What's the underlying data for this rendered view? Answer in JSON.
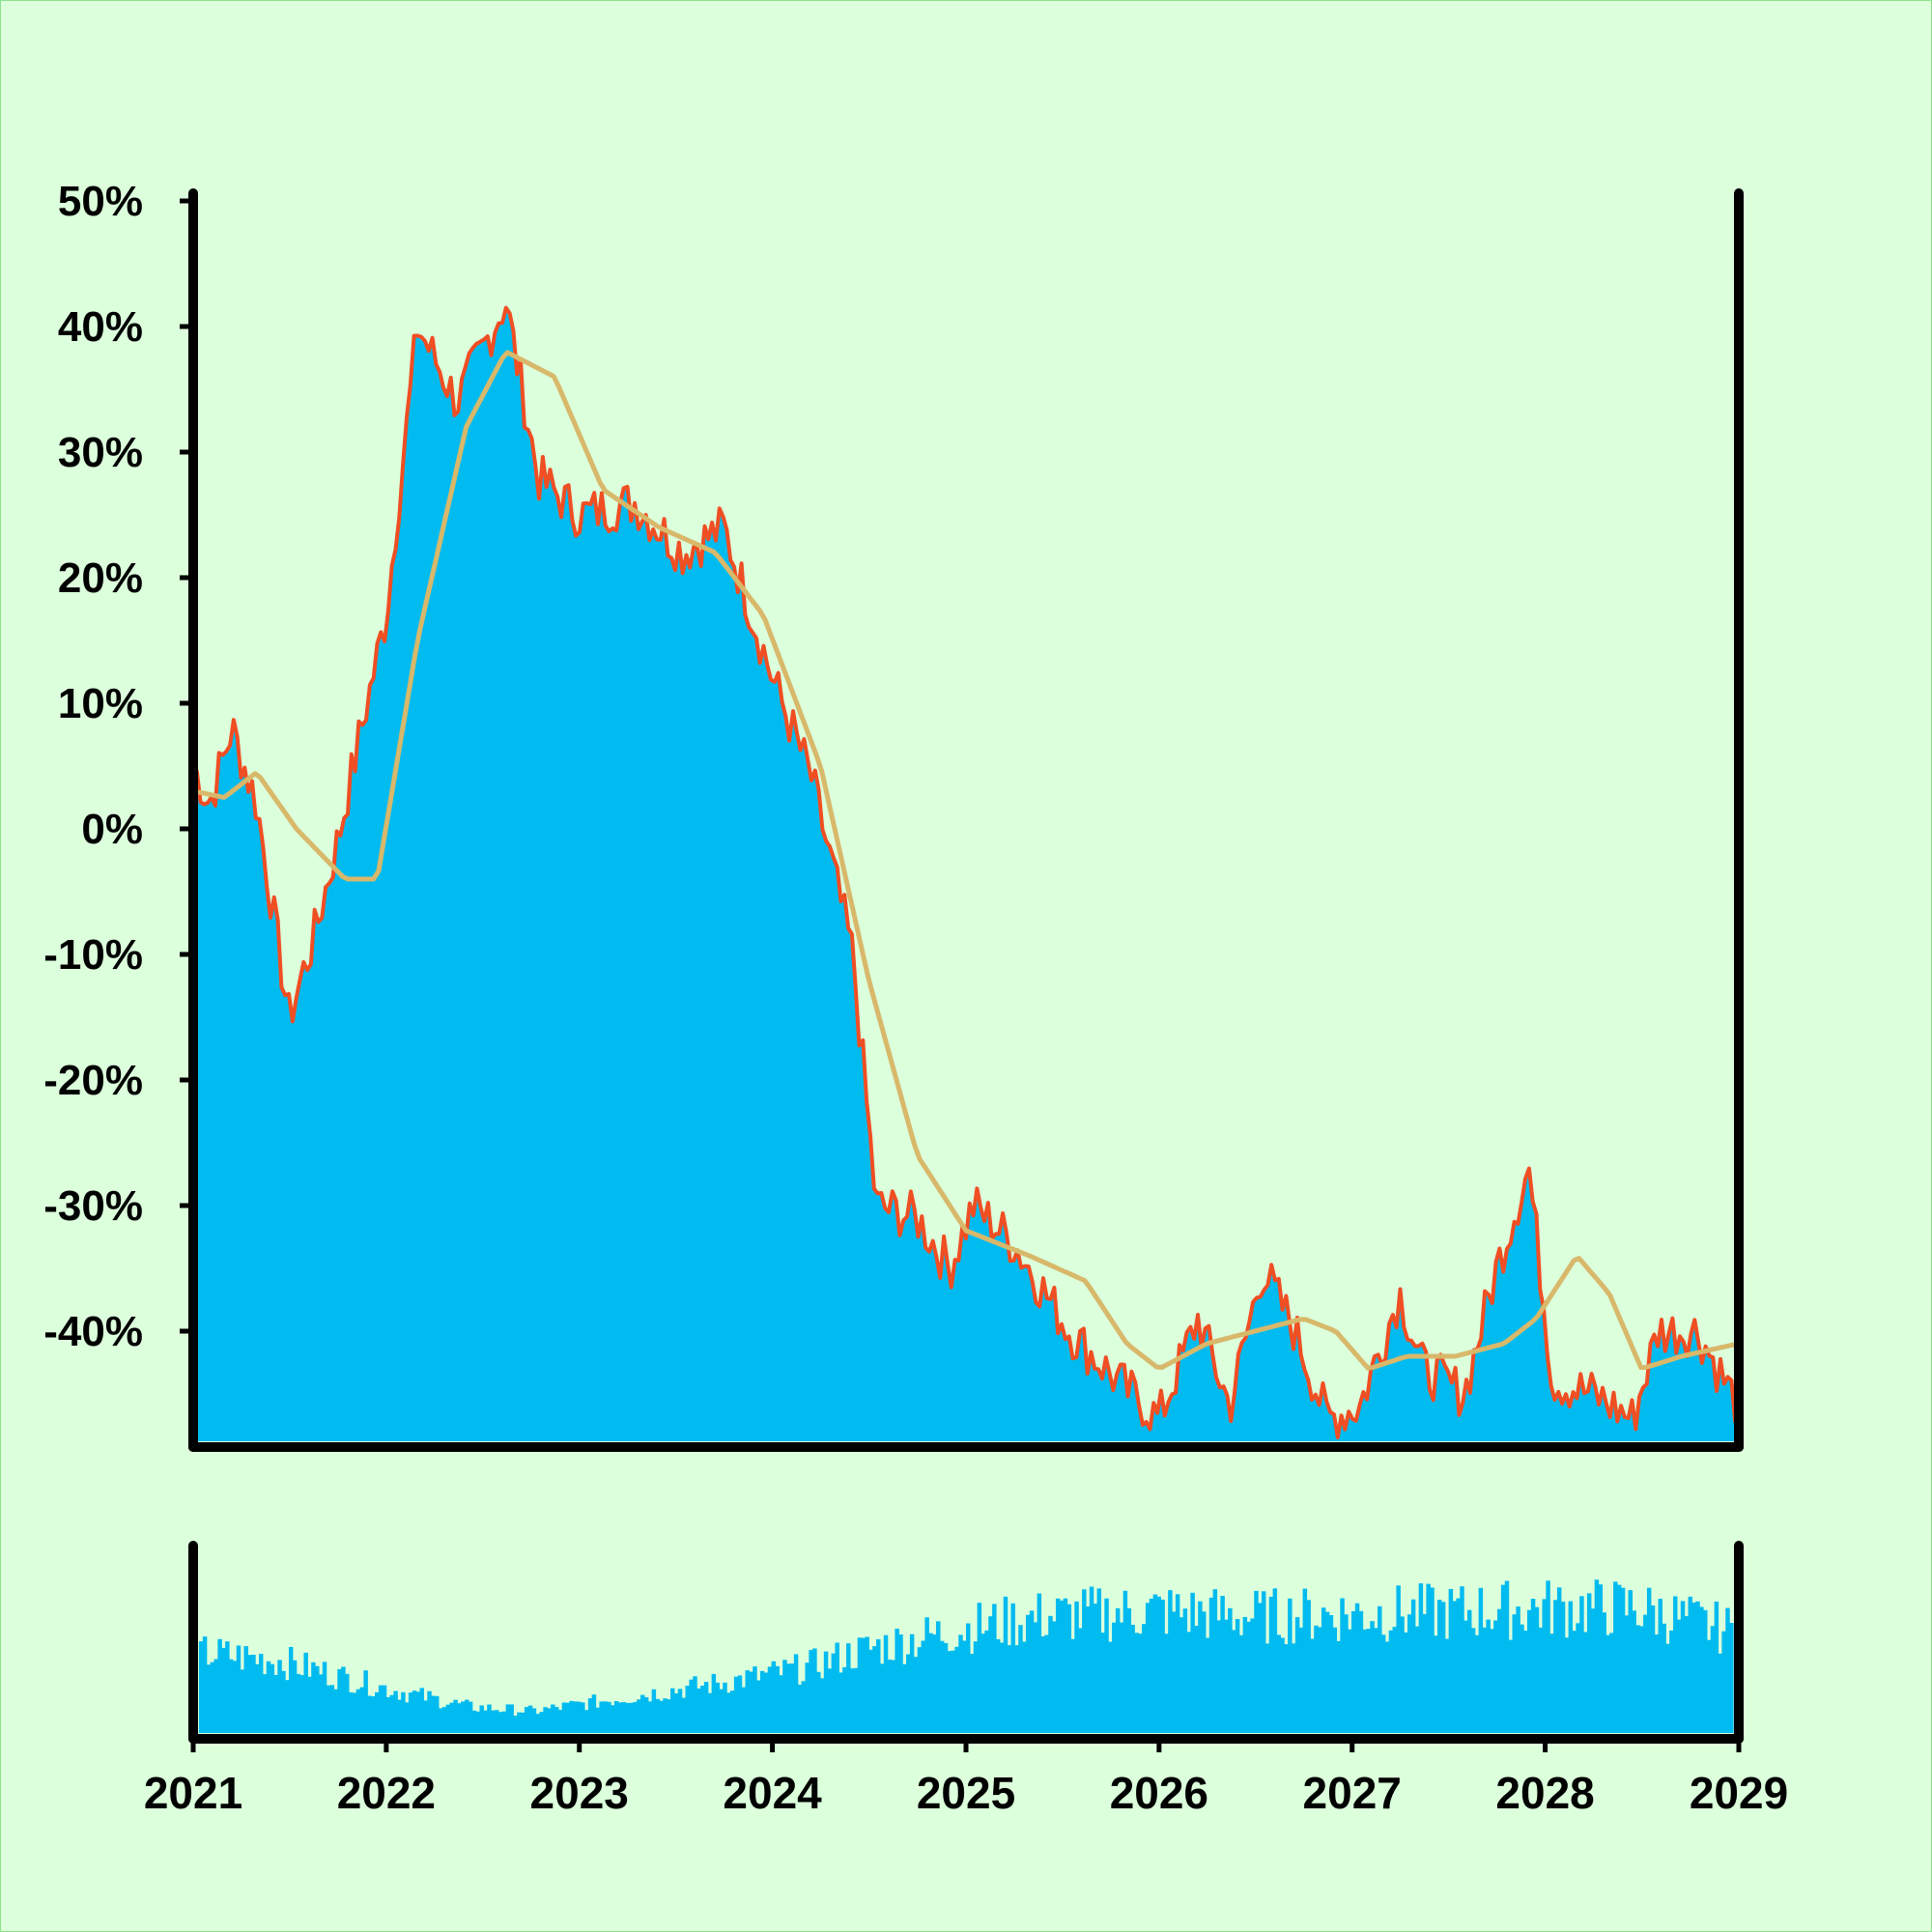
{
  "colors": {
    "background": "#dcffdc",
    "border": "#8fe08f",
    "area_fill": "#00bbf0",
    "price_line": "#f04e23",
    "moving_average": "#d8b86a",
    "axis": "#000000",
    "volume_bars": "#00bbf0"
  },
  "chart_data": [
    {
      "type": "area",
      "title": "",
      "xlabel": "",
      "ylabel": "",
      "xlim": [
        "2021-01-01",
        "2029-01-01"
      ],
      "ylim": [
        -49,
        50
      ],
      "grid": false,
      "y_tick_labels": [
        "50%",
        "40%",
        "30%",
        "20%",
        "10%",
        "0%",
        "-10%",
        "-20%",
        "-30%",
        "-40%"
      ],
      "y_tick_values": [
        50,
        40,
        30,
        20,
        10,
        0,
        -10,
        -20,
        -30,
        -40
      ],
      "series": [
        {
          "style": "filled area with red outline",
          "color": "#00bbf0",
          "line_color": "#f04e23",
          "x": [
            "2021-01-01",
            "2021-02-01",
            "2021-03-15",
            "2021-05-01",
            "2021-07-01",
            "2021-08-15",
            "2021-10-01",
            "2021-11-15",
            "2022-01-01",
            "2022-03-01",
            "2022-05-15",
            "2022-08-15",
            "2022-10-15",
            "2023-01-01",
            "2023-04-15",
            "2023-07-15",
            "2023-10-01",
            "2024-01-01",
            "2024-03-15",
            "2024-06-01",
            "2024-07-15",
            "2024-10-01",
            "2024-12-01",
            "2025-01-15",
            "2025-04-01",
            "2025-07-15",
            "2025-10-15",
            "2026-01-01",
            "2026-03-15",
            "2026-05-15",
            "2026-07-15",
            "2026-09-15",
            "2026-11-15",
            "2027-01-15",
            "2027-04-01",
            "2027-05-15",
            "2027-08-01",
            "2027-10-01",
            "2027-12-01",
            "2028-01-15",
            "2028-04-01",
            "2028-06-15",
            "2028-08-01",
            "2028-10-15",
            "2028-12-31"
          ],
          "y": [
            5,
            2,
            8,
            2,
            -15,
            -9,
            -1,
            8,
            17,
            40,
            34,
            42,
            28,
            25,
            26,
            22,
            24,
            12,
            4,
            -10,
            -30,
            -31,
            -35,
            -30,
            -33,
            -40,
            -44,
            -47,
            -39,
            -46,
            -35,
            -40,
            -47,
            -46,
            -37,
            -43,
            -45,
            -35,
            -27,
            -44,
            -45,
            -47,
            -40,
            -40,
            -46
          ]
        },
        {
          "style": "moving average line",
          "color": "#d8b86a",
          "x": [
            "2021-01-01",
            "2021-03-01",
            "2021-05-01",
            "2021-07-15",
            "2021-10-15",
            "2021-12-15",
            "2022-03-01",
            "2022-06-01",
            "2022-08-15",
            "2022-11-15",
            "2023-02-15",
            "2023-06-01",
            "2023-09-15",
            "2023-12-15",
            "2024-04-01",
            "2024-07-01",
            "2024-10-01",
            "2025-01-01",
            "2025-05-01",
            "2025-08-15",
            "2025-11-01",
            "2026-01-01",
            "2026-04-01",
            "2026-07-01",
            "2026-10-01",
            "2026-12-01",
            "2027-02-01",
            "2027-04-15",
            "2027-07-15",
            "2027-10-15",
            "2027-12-15",
            "2028-03-01",
            "2028-05-01",
            "2028-07-01",
            "2028-09-15",
            "2028-12-31"
          ],
          "y": [
            3,
            2.5,
            4.5,
            0,
            -4,
            -4,
            15,
            32,
            38,
            36,
            27,
            24,
            22,
            17,
            5,
            -12,
            -26,
            -32,
            -34,
            -36,
            -41,
            -43,
            -41,
            -40,
            -39,
            -40,
            -43,
            -42,
            -42,
            -41,
            -39,
            -34,
            -37,
            -43,
            -42,
            -41
          ]
        }
      ]
    },
    {
      "type": "bar",
      "title": "",
      "xlabel": "",
      "ylabel": "",
      "xlim": [
        "2021-01-01",
        "2029-01-01"
      ],
      "grid": false,
      "color": "#00bbf0",
      "x_tick_labels": [
        "2021",
        "2022",
        "2023",
        "2024",
        "2025",
        "2026",
        "2027",
        "2028",
        "2029"
      ],
      "x_tick_values": [
        "2021-01-01",
        "2022-01-01",
        "2023-01-01",
        "2024-01-01",
        "2025-01-01",
        "2026-01-01",
        "2027-01-01",
        "2028-01-01",
        "2029-01-01"
      ],
      "envelope_x": [
        "2021-01-01",
        "2021-06-01",
        "2022-01-01",
        "2022-06-01",
        "2022-10-01",
        "2023-04-01",
        "2023-10-01",
        "2024-03-01",
        "2024-07-01",
        "2025-01-01",
        "2025-06-01",
        "2026-01-01",
        "2026-07-01",
        "2027-01-01",
        "2027-07-01",
        "2028-01-01",
        "2028-07-01",
        "2028-12-31"
      ],
      "envelope_level": [
        0.55,
        0.5,
        0.3,
        0.18,
        0.15,
        0.25,
        0.35,
        0.45,
        0.58,
        0.72,
        0.8,
        0.84,
        0.8,
        0.82,
        0.83,
        0.86,
        0.86,
        0.7
      ]
    }
  ]
}
